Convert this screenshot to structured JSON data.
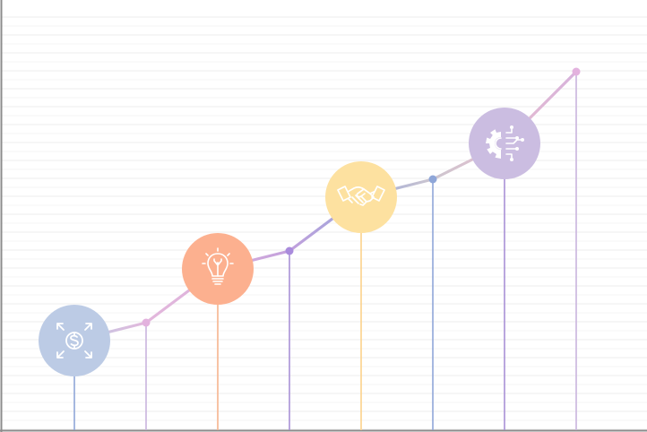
{
  "chart_data": {
    "type": "line",
    "title": "",
    "xlabel": "",
    "ylabel": "",
    "x": [
      1,
      2,
      3,
      4,
      5,
      6,
      7,
      8
    ],
    "values": [
      5,
      6,
      9,
      10,
      13,
      14,
      16,
      20
    ],
    "ylim": [
      0,
      23
    ],
    "grid": true,
    "milestones": [
      {
        "step": 1,
        "icon": "dollar-expand-icon",
        "color": "#bccbe5",
        "stem_color": "#8fa6d8"
      },
      {
        "step": 3,
        "icon": "lightbulb-icon",
        "color": "#fcb08f",
        "stem_color": "#f7b48e"
      },
      {
        "step": 5,
        "icon": "handshake-icon",
        "color": "#fde1a0",
        "stem_color": "#fcd28a"
      },
      {
        "step": 7,
        "icon": "gear-circuit-icon",
        "color": "#cbbde1",
        "stem_color": "#a891d6"
      }
    ],
    "dots": [
      {
        "step": 2,
        "color": "#e3b2de",
        "stem_color": "#c9b4de"
      },
      {
        "step": 4,
        "color": "#a98bdc",
        "stem_color": "#a891d6"
      },
      {
        "step": 6,
        "color": "#8fa6d8",
        "stem_color": "#8fa6d8"
      },
      {
        "step": 8,
        "color": "#e3b2de",
        "stem_color": "#c9b4de"
      }
    ],
    "line_colors": [
      "#bccbe5",
      "#e3b8dc",
      "#dcb1dc",
      "#c2a0dc",
      "#9aa8dc",
      "#cdc6cf",
      "#e6bdcf",
      "#d7b2dc"
    ]
  }
}
